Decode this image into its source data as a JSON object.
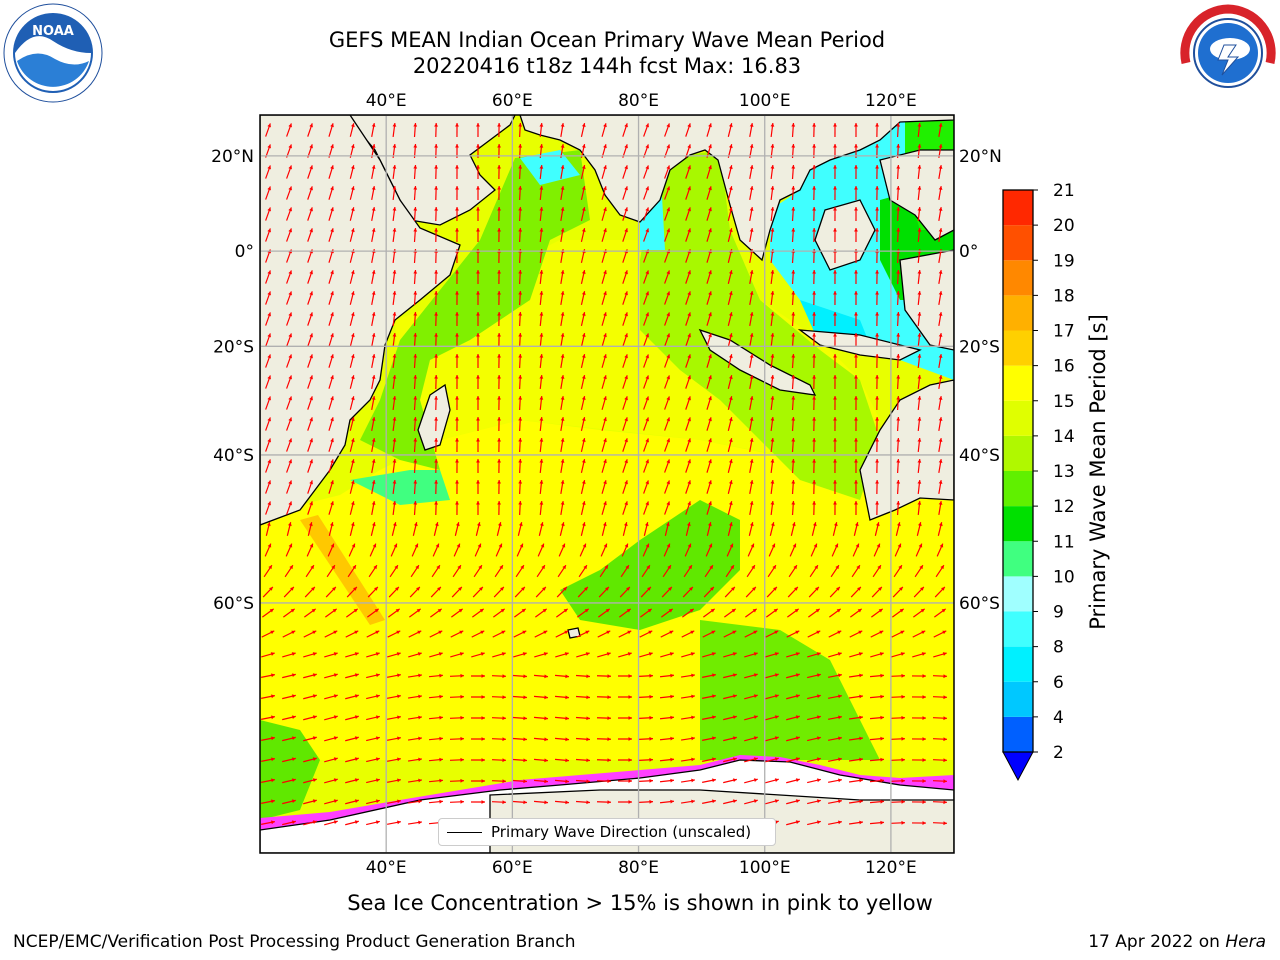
{
  "title_line1": "GEFS MEAN Indian Ocean Primary Wave Mean Period",
  "title_line2": "20220416 t18z 144h fcst   Max: 16.83",
  "logos": {
    "left": {
      "name": "noaa-logo",
      "text": "NOAA",
      "ring_text": "NATIONAL OCEANIC AND ATMOSPHERIC ADMINISTRATION · U.S. DEPARTMENT OF COMMERCE"
    },
    "right": {
      "name": "nws-logo",
      "ring_text": "NATIONAL WEATHER SERVICE"
    }
  },
  "map": {
    "lon_ticks": [
      "40°E",
      "60°E",
      "80°E",
      "100°E",
      "120°E"
    ],
    "lon_values": [
      40,
      60,
      80,
      100,
      120
    ],
    "lat_ticks": [
      "20°N",
      "0°",
      "20°S",
      "40°S",
      "60°S"
    ],
    "lat_values": [
      20,
      0,
      -20,
      -40,
      -60
    ],
    "lon_range": [
      20,
      130
    ],
    "lat_range": [
      -78,
      28
    ],
    "grid": true,
    "land_color": "#efeee0",
    "arrow_color": "#ff0000"
  },
  "legend": {
    "label": "Primary Wave Direction (unscaled)"
  },
  "colorbar": {
    "label": "Primary Wave Mean Period [s]",
    "ticks": [
      "2",
      "4",
      "6",
      "8",
      "9",
      "10",
      "11",
      "12",
      "13",
      "14",
      "15",
      "16",
      "17",
      "18",
      "19",
      "20",
      "21"
    ],
    "colors": [
      "#0060ff",
      "#00c8ff",
      "#00f0ff",
      "#40ffff",
      "#a0ffff",
      "#40ff80",
      "#00e000",
      "#60f000",
      "#b0f800",
      "#e0ff00",
      "#ffff00",
      "#ffd000",
      "#ffb000",
      "#ff8800",
      "#ff5000",
      "#ff2800",
      "#ff0000"
    ],
    "extend_color": "#0000ff"
  },
  "note": "Sea Ice Concentration > 15% is shown in pink to yellow",
  "footer_left": "NCEP/EMC/Verification Post Processing Product Generation Branch",
  "footer_right_prefix": "17 Apr 2022 on ",
  "footer_right_machine": "Hera"
}
